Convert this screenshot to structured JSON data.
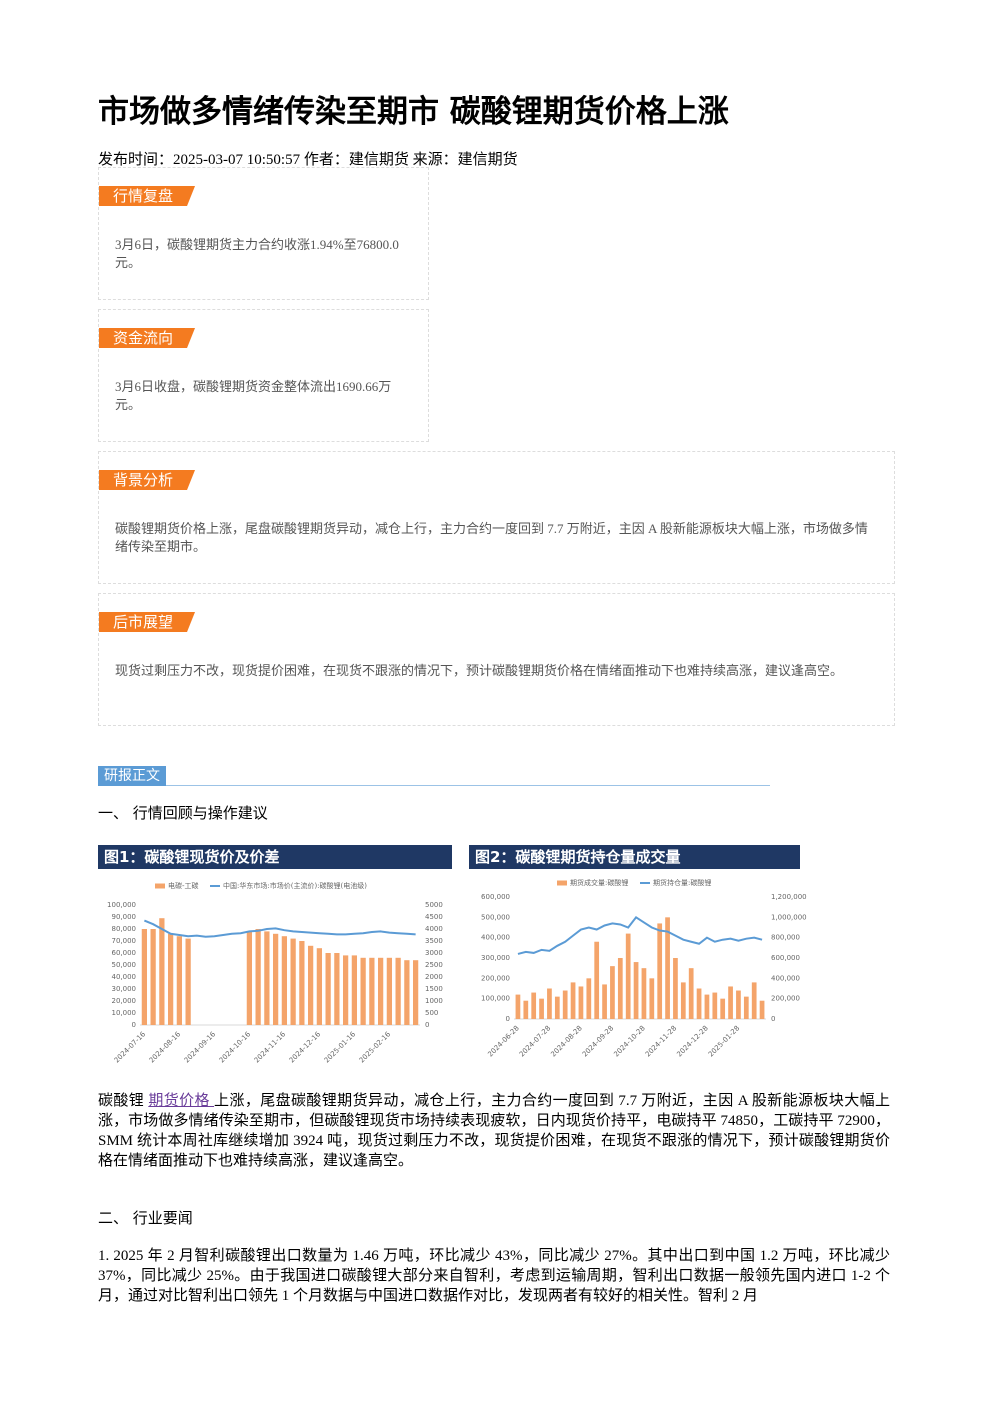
{
  "header": {
    "title": "市场做多情绪传染至期市 碳酸锂期货价格上涨",
    "meta": "发布时间：2025-03-07 10:50:57 作者：建信期货 来源：建信期货"
  },
  "cards": [
    {
      "title": "行情复盘",
      "text": "3月6日，碳酸锂期货主力合约收涨1.94%至76800.0元。"
    },
    {
      "title": "资金流向",
      "text": "3月6日收盘，碳酸锂期货资金整体流出1690.66万元。"
    },
    {
      "title": "背景分析",
      "text": "碳酸锂期货价格上涨，尾盘碳酸锂期货异动，减仓上行，主力合约一度回到 7.7 万附近，主因 A 股新能源板块大幅上涨，市场做多情绪传染至期市。"
    },
    {
      "title": "后市展望",
      "text": "现货过剩压力不改，现货提价困难，在现货不跟涨的情况下，预计碳酸锂期货价格在情绪面推动下也难持续高涨，建议逢高空。"
    }
  ],
  "section_tag": "研报正文",
  "headings": [
    "一、 行情回顾与操作建议",
    "二、 行业要闻"
  ],
  "paragraph_1": {
    "before": "碳酸锂 ",
    "link": "期货价格 ",
    "after": "上涨，尾盘碳酸锂期货异动，减仓上行，主力合约一度回到 7.7 万附近，主因 A 股新能源板块大幅上涨，市场做多情绪传染至期市，但碳酸锂现货市场持续表现疲软，日内现货价持平，电碳持平 74850，工碳持平 72900，SMM 统计本周社库继续增加 3924 吨，现货过剩压力不改，现货提价困难，在现货不跟涨的情况下，预计碳酸锂期货价格在情绪面推动下也难持续高涨，建议逢高空。"
  },
  "paragraph_2": "1. 2025 年 2 月智利碳酸锂出口数量为 1.46 万吨，环比减少 43%，同比减少 27%。其中出口到中国 1.2 万吨，环比减少 37%，同比减少 25%。由于我国进口碳酸锂大部分来自智利，考虑到运输周期，智利出口数据一般领先国内进口 1-2 个月，通过对比智利出口领先 1 个月数据与中国进口数据作对比，发现两者有较好的相关性。智利 2 月",
  "chart_data": [
    {
      "type": "combo",
      "title": "图1：碳酸锂现货价及价差",
      "categories": [
        "2024-07-16",
        null,
        null,
        null,
        "2024-08-16",
        null,
        null,
        null,
        "2024-09-16",
        null,
        null,
        null,
        "2024-10-16",
        null,
        null,
        null,
        "2024-11-16",
        null,
        null,
        null,
        "2024-12-16",
        null,
        null,
        null,
        "2025-01-16",
        null,
        null,
        null,
        "2025-02-16",
        null,
        null,
        null
      ],
      "series": [
        {
          "name": "电碳-工碳",
          "type": "bar",
          "axis": "y2",
          "color": "#f4a46a",
          "values": [
            4000,
            4000,
            4450,
            3800,
            3700,
            3600,
            null,
            null,
            null,
            null,
            null,
            null,
            3900,
            4000,
            3900,
            3800,
            3700,
            3600,
            3500,
            3300,
            3200,
            3000,
            3000,
            2900,
            2900,
            2800,
            2800,
            2800,
            2800,
            2800,
            2700,
            2700
          ]
        },
        {
          "name": "中国:华东市场:市场价(主流价):碳酸锂(电池级)",
          "type": "line",
          "axis": "y",
          "color": "#5b9bd5",
          "values": [
            87000,
            84000,
            80000,
            76000,
            75000,
            74000,
            74500,
            73500,
            74000,
            75000,
            76000,
            76500,
            78000,
            78500,
            80000,
            80500,
            79000,
            78000,
            77500,
            77000,
            76500,
            76000,
            75500,
            75500,
            76000,
            76500,
            77500,
            78000,
            77000,
            76500,
            76000,
            75500
          ]
        }
      ],
      "ylim": [
        0,
        100000
      ],
      "yticks": [
        0,
        {
          "value": 10000,
          "label": "10,000"
        },
        {
          "value": 20000,
          "label": "20,000"
        },
        {
          "value": 30000,
          "label": "30,000"
        },
        {
          "value": 40000,
          "label": "40,000"
        },
        {
          "value": 50000,
          "label": "50,000"
        },
        {
          "value": 60000,
          "label": "60,000"
        },
        {
          "value": 70000,
          "label": "70,000"
        },
        {
          "value": 80000,
          "label": "80,000"
        },
        {
          "value": 90000,
          "label": "90,000"
        },
        {
          "value": 100000,
          "label": "100,000"
        }
      ],
      "y2lim": [
        0,
        5000
      ],
      "y2ticks": [
        0,
        500,
        1000,
        1500,
        2000,
        2500,
        3000,
        3500,
        4000,
        4500,
        5000
      ]
    },
    {
      "type": "combo",
      "title": "图2：碳酸锂期货持仓量成交量",
      "categories": [
        "2024-06-28",
        null,
        null,
        null,
        "2024-07-28",
        null,
        null,
        null,
        "2024-08-28",
        null,
        null,
        null,
        "2024-09-28",
        null,
        null,
        null,
        "2024-10-28",
        null,
        null,
        null,
        "2024-11-28",
        null,
        null,
        null,
        "2024-12-28",
        null,
        null,
        null,
        "2025-01-28",
        null,
        null,
        null
      ],
      "series": [
        {
          "name": "期货成交量:碳酸锂",
          "type": "bar",
          "axis": "y",
          "color": "#f4a46a",
          "values": [
            120000,
            90000,
            130000,
            100000,
            150000,
            110000,
            140000,
            180000,
            160000,
            200000,
            380000,
            170000,
            260000,
            300000,
            420000,
            280000,
            250000,
            200000,
            470000,
            500000,
            300000,
            180000,
            250000,
            150000,
            120000,
            130000,
            100000,
            160000,
            140000,
            110000,
            180000,
            90000
          ]
        },
        {
          "name": "期货持仓量:碳酸锂",
          "type": "line",
          "axis": "y2",
          "color": "#5b9bd5",
          "values": [
            640000,
            660000,
            650000,
            680000,
            670000,
            720000,
            760000,
            820000,
            880000,
            900000,
            880000,
            920000,
            940000,
            930000,
            900000,
            1000000,
            950000,
            900000,
            870000,
            860000,
            820000,
            780000,
            760000,
            740000,
            800000,
            760000,
            780000,
            790000,
            770000,
            790000,
            800000,
            780000
          ]
        }
      ],
      "ylim": [
        0,
        600000
      ],
      "yticks": [
        0,
        {
          "value": 100000,
          "label": "100,000"
        },
        {
          "value": 200000,
          "label": "200,000"
        },
        {
          "value": 300000,
          "label": "300,000"
        },
        {
          "value": 400000,
          "label": "400,000"
        },
        {
          "value": 500000,
          "label": "500,000"
        },
        {
          "value": 600000,
          "label": "600,000"
        }
      ],
      "y2lim": [
        0,
        1200000
      ],
      "y2ticks": [
        0,
        {
          "value": 200000,
          "label": "200,000"
        },
        {
          "value": 400000,
          "label": "400,000"
        },
        {
          "value": 600000,
          "label": "600,000"
        },
        {
          "value": 800000,
          "label": "800,000"
        },
        {
          "value": 1000000,
          "label": "1,000,000"
        },
        {
          "value": 1200000,
          "label": "1,200,000"
        }
      ]
    }
  ]
}
